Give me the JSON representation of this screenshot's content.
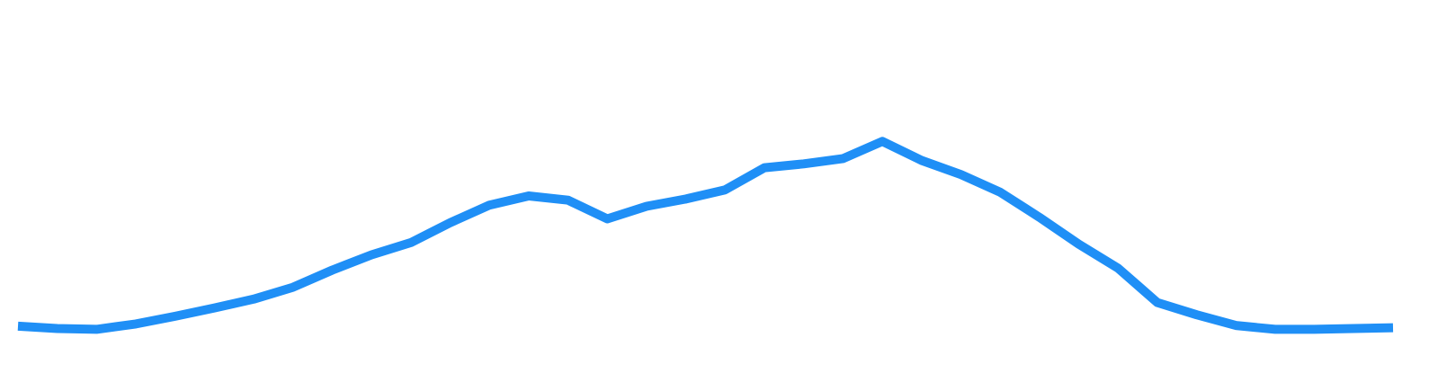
{
  "chart_data": {
    "type": "line",
    "title": "",
    "xlabel": "",
    "ylabel": "",
    "x": [
      0,
      1,
      2,
      3,
      4,
      5,
      6,
      7,
      8,
      9,
      10,
      11,
      12,
      13,
      14,
      15,
      16,
      17,
      18,
      19,
      20,
      21,
      22,
      23,
      24,
      25,
      26,
      27,
      28,
      29,
      30,
      31,
      32,
      33,
      34,
      35
    ],
    "series": [
      {
        "color": "#1f8ff6",
        "values": [
          6,
          0,
          -2,
          12,
          32,
          54,
          77,
          108,
          153,
          193,
          225,
          277,
          323,
          347,
          336,
          287,
          320,
          339,
          363,
          421,
          431,
          445,
          490,
          440,
          403,
          357,
          291,
          221,
          158,
          68,
          36,
          8,
          -2,
          -2,
          0,
          2
        ]
      }
    ],
    "xlim": [
      0,
      35
    ],
    "ylim": [
      -140,
      860
    ],
    "grid": false,
    "legend": "none",
    "axes_visible": false
  }
}
